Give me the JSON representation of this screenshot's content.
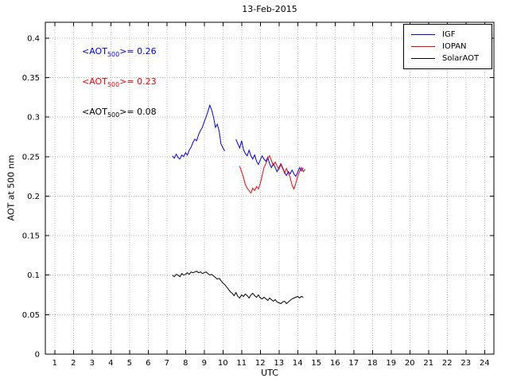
{
  "annotations": [
    {
      "prefix": "<AOT",
      "sub": "500",
      "suffix": ">= 0.26",
      "color": "#0000ff"
    },
    {
      "prefix": "<AOT",
      "sub": "500",
      "suffix": ">= 0.23",
      "color": "#ff0000"
    },
    {
      "prefix": "<AOT",
      "sub": "500",
      "suffix": ">= 0.08",
      "color": "#000000"
    }
  ],
  "chart_data": {
    "type": "line",
    "title": "13-Feb-2015",
    "xlabel": "UTC",
    "ylabel": "AOT at 500 nm",
    "xlim": [
      0.5,
      24.5
    ],
    "ylim": [
      0,
      0.42
    ],
    "xticks": [
      1,
      2,
      3,
      4,
      5,
      6,
      7,
      8,
      9,
      10,
      11,
      12,
      13,
      14,
      15,
      16,
      17,
      18,
      19,
      20,
      21,
      22,
      23,
      24
    ],
    "yticks": [
      0,
      0.05,
      0.1,
      0.15,
      0.2,
      0.25,
      0.3,
      0.35,
      0.4
    ],
    "ytick_labels": [
      "0",
      "0.05",
      "0.1",
      "0.15",
      "0.2",
      "0.25",
      "0.3",
      "0.35",
      "0.4"
    ],
    "grid": "on",
    "legend_position": "top-right",
    "grid_color": "#bbbbbb",
    "series": [
      {
        "name": "IGF",
        "color": "#0000ff",
        "mean_aot500": 0.26,
        "segments": [
          [
            [
              7.3,
              0.251
            ],
            [
              7.4,
              0.248
            ],
            [
              7.5,
              0.253
            ],
            [
              7.6,
              0.249
            ],
            [
              7.7,
              0.247
            ],
            [
              7.8,
              0.252
            ],
            [
              7.9,
              0.25
            ],
            [
              8.0,
              0.255
            ],
            [
              8.1,
              0.252
            ],
            [
              8.2,
              0.258
            ],
            [
              8.3,
              0.262
            ],
            [
              8.4,
              0.268
            ],
            [
              8.5,
              0.272
            ],
            [
              8.6,
              0.27
            ],
            [
              8.7,
              0.278
            ],
            [
              8.8,
              0.283
            ],
            [
              8.9,
              0.287
            ],
            [
              9.0,
              0.294
            ],
            [
              9.1,
              0.3
            ],
            [
              9.2,
              0.307
            ],
            [
              9.3,
              0.315
            ],
            [
              9.4,
              0.309
            ],
            [
              9.5,
              0.3
            ],
            [
              9.6,
              0.287
            ],
            [
              9.7,
              0.291
            ],
            [
              9.8,
              0.282
            ],
            [
              9.9,
              0.266
            ],
            [
              10.0,
              0.261
            ],
            [
              10.1,
              0.257
            ]
          ],
          [
            [
              10.7,
              0.272
            ],
            [
              10.8,
              0.266
            ],
            [
              10.9,
              0.261
            ],
            [
              11.0,
              0.27
            ],
            [
              11.1,
              0.259
            ],
            [
              11.2,
              0.254
            ],
            [
              11.3,
              0.251
            ],
            [
              11.4,
              0.258
            ],
            [
              11.5,
              0.251
            ],
            [
              11.6,
              0.247
            ],
            [
              11.7,
              0.252
            ],
            [
              11.8,
              0.244
            ],
            [
              11.9,
              0.24
            ],
            [
              12.0,
              0.246
            ],
            [
              12.1,
              0.251
            ],
            [
              12.2,
              0.247
            ],
            [
              12.3,
              0.244
            ],
            [
              12.4,
              0.249
            ],
            [
              12.5,
              0.241
            ],
            [
              12.6,
              0.236
            ],
            [
              12.7,
              0.241
            ],
            [
              12.8,
              0.236
            ],
            [
              12.9,
              0.231
            ],
            [
              13.0,
              0.236
            ],
            [
              13.1,
              0.241
            ],
            [
              13.2,
              0.236
            ],
            [
              13.3,
              0.23
            ],
            [
              13.4,
              0.226
            ],
            [
              13.5,
              0.231
            ],
            [
              13.6,
              0.228
            ],
            [
              13.7,
              0.233
            ],
            [
              13.8,
              0.228
            ],
            [
              13.9,
              0.225
            ],
            [
              14.0,
              0.23
            ],
            [
              14.1,
              0.236
            ],
            [
              14.2,
              0.232
            ],
            [
              14.3,
              0.236
            ]
          ]
        ]
      },
      {
        "name": "IOPAN",
        "color": "#ff0000",
        "mean_aot500": 0.23,
        "segments": [
          [
            [
              10.9,
              0.238
            ],
            [
              11.0,
              0.231
            ],
            [
              11.1,
              0.224
            ],
            [
              11.2,
              0.215
            ],
            [
              11.3,
              0.21
            ],
            [
              11.4,
              0.207
            ],
            [
              11.5,
              0.204
            ],
            [
              11.6,
              0.21
            ],
            [
              11.7,
              0.207
            ],
            [
              11.8,
              0.212
            ],
            [
              11.9,
              0.209
            ],
            [
              12.0,
              0.216
            ],
            [
              12.1,
              0.226
            ],
            [
              12.2,
              0.236
            ],
            [
              12.3,
              0.241
            ],
            [
              12.4,
              0.248
            ],
            [
              12.5,
              0.251
            ],
            [
              12.6,
              0.245
            ],
            [
              12.7,
              0.239
            ],
            [
              12.8,
              0.243
            ],
            [
              12.9,
              0.238
            ],
            [
              13.0,
              0.234
            ],
            [
              13.1,
              0.24
            ],
            [
              13.2,
              0.235
            ],
            [
              13.3,
              0.229
            ],
            [
              13.4,
              0.235
            ],
            [
              13.5,
              0.229
            ],
            [
              13.6,
              0.224
            ],
            [
              13.7,
              0.214
            ],
            [
              13.8,
              0.209
            ],
            [
              13.9,
              0.216
            ],
            [
              14.0,
              0.225
            ],
            [
              14.1,
              0.231
            ],
            [
              14.2,
              0.236
            ],
            [
              14.3,
              0.231
            ],
            [
              14.4,
              0.234
            ]
          ]
        ]
      },
      {
        "name": "SolarAOT",
        "color": "#000000",
        "mean_aot500": 0.08,
        "segments": [
          [
            [
              7.3,
              0.1
            ],
            [
              7.4,
              0.098
            ],
            [
              7.5,
              0.101
            ],
            [
              7.6,
              0.1
            ],
            [
              7.7,
              0.098
            ],
            [
              7.8,
              0.102
            ],
            [
              7.9,
              0.1
            ],
            [
              8.0,
              0.101
            ],
            [
              8.1,
              0.103
            ],
            [
              8.2,
              0.101
            ],
            [
              8.3,
              0.104
            ],
            [
              8.4,
              0.103
            ],
            [
              8.5,
              0.104
            ],
            [
              8.6,
              0.105
            ],
            [
              8.7,
              0.103
            ],
            [
              8.8,
              0.104
            ],
            [
              8.9,
              0.102
            ],
            [
              9.0,
              0.103
            ],
            [
              9.1,
              0.104
            ],
            [
              9.2,
              0.102
            ],
            [
              9.3,
              0.1
            ],
            [
              9.4,
              0.101
            ],
            [
              9.5,
              0.099
            ],
            [
              9.6,
              0.097
            ],
            [
              9.7,
              0.095
            ],
            [
              9.8,
              0.096
            ],
            [
              9.9,
              0.093
            ],
            [
              10.0,
              0.09
            ],
            [
              10.1,
              0.088
            ],
            [
              10.2,
              0.085
            ],
            [
              10.3,
              0.082
            ],
            [
              10.4,
              0.079
            ],
            [
              10.5,
              0.077
            ],
            [
              10.6,
              0.074
            ],
            [
              10.7,
              0.078
            ],
            [
              10.8,
              0.073
            ],
            [
              10.9,
              0.071
            ],
            [
              11.0,
              0.075
            ],
            [
              11.1,
              0.073
            ],
            [
              11.2,
              0.076
            ],
            [
              11.3,
              0.074
            ],
            [
              11.4,
              0.071
            ],
            [
              11.5,
              0.075
            ],
            [
              11.6,
              0.077
            ],
            [
              11.7,
              0.074
            ],
            [
              11.8,
              0.072
            ],
            [
              11.9,
              0.075
            ],
            [
              12.0,
              0.071
            ],
            [
              12.1,
              0.07
            ],
            [
              12.2,
              0.072
            ],
            [
              12.3,
              0.07
            ],
            [
              12.4,
              0.068
            ],
            [
              12.5,
              0.071
            ],
            [
              12.6,
              0.069
            ],
            [
              12.7,
              0.067
            ],
            [
              12.8,
              0.069
            ],
            [
              12.9,
              0.066
            ],
            [
              13.0,
              0.065
            ],
            [
              13.1,
              0.064
            ],
            [
              13.2,
              0.066
            ],
            [
              13.3,
              0.067
            ],
            [
              13.4,
              0.064
            ],
            [
              13.5,
              0.066
            ],
            [
              13.6,
              0.068
            ],
            [
              13.7,
              0.07
            ],
            [
              13.8,
              0.071
            ],
            [
              13.9,
              0.072
            ],
            [
              14.0,
              0.073
            ],
            [
              14.1,
              0.071
            ],
            [
              14.2,
              0.073
            ],
            [
              14.3,
              0.072
            ]
          ]
        ]
      }
    ]
  }
}
